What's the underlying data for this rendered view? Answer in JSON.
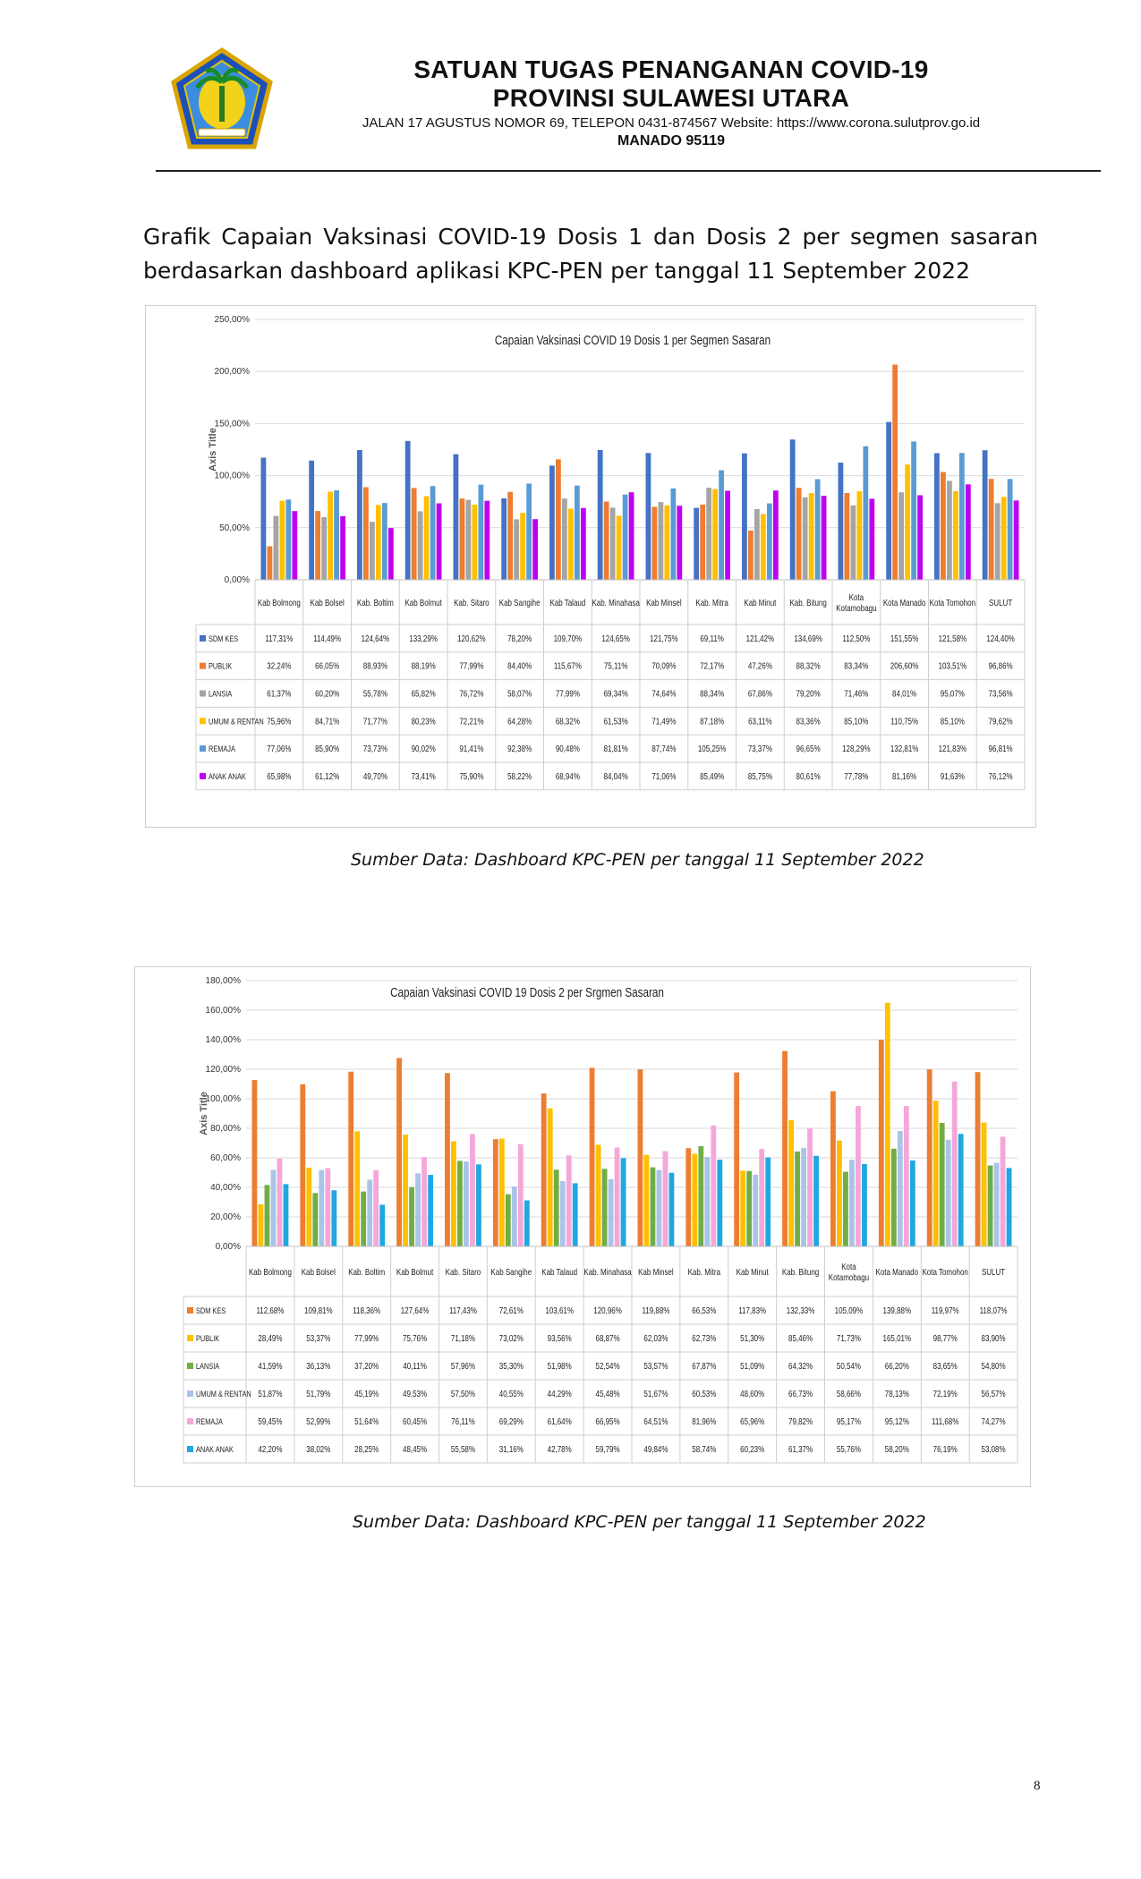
{
  "header": {
    "line1": "SATUAN TUGAS PENANGANAN COVID-19",
    "line2": "PROVINSI SULAWESI UTARA",
    "address": "JALAN  17  AGUSTUS  NOMOR  69,  TELEPON  0431-874567  Website:  https://www.corona.sulutprov.go.id",
    "city": "MANADO  95119"
  },
  "intro": "Grafik Capaian Vaksinasi COVID-19 Dosis 1 dan Dosis 2 per segmen sasaran berdasarkan dashboard aplikasi KPC-PEN per tanggal 11 September 2022",
  "source1": "Sumber Data: Dashboard KPC-PEN per tanggal 11 September 2022",
  "source2": "Sumber Data: Dashboard KPC-PEN per tanggal 11 September 2022",
  "page_number": "8",
  "chart_data": [
    {
      "type": "bar",
      "title": "Capaian Vaksinasi COVID 19 Dosis 1 per Segmen Sasaran",
      "ylabel": "Axis Title",
      "ylim": [
        0,
        250
      ],
      "yticks": [
        "0,00%",
        "50,00%",
        "100,00%",
        "150,00%",
        "200,00%",
        "250,00%"
      ],
      "grid": true,
      "legend": "table-below",
      "categories": [
        "Kab Bolmong",
        "Kab Bolsel",
        "Kab. Boltim",
        "Kab Bolmut",
        "Kab. Sitaro",
        "Kab Sangihe",
        "Kab Talaud",
        "Kab. Minahasa",
        "Kab Minsel",
        "Kab. Mitra",
        "Kab Minut",
        "Kab. Bitung",
        "Kota Kotamobagu",
        "Kota Manado",
        "Kota Tomohon",
        "SULUT"
      ],
      "series": [
        {
          "name": "SDM KES",
          "color": "#4472c4",
          "values": [
            117.31,
            114.49,
            124.64,
            133.29,
            120.62,
            78.2,
            109.7,
            124.65,
            121.75,
            69.11,
            121.42,
            134.69,
            112.5,
            151.55,
            121.58,
            124.4
          ],
          "labels": [
            "117,31%",
            "114,49%",
            "124,64%",
            "133,29%",
            "120,62%",
            "78,20%",
            "109,70%",
            "124,65%",
            "121,75%",
            "69,11%",
            "121,42%",
            "134,69%",
            "112,50%",
            "151,55%",
            "121,58%",
            "124,40%"
          ]
        },
        {
          "name": "PUBLIK",
          "color": "#ed7d31",
          "values": [
            32.24,
            66.05,
            88.93,
            88.19,
            77.99,
            84.4,
            115.67,
            75.11,
            70.09,
            72.17,
            47.26,
            88.32,
            83.34,
            206.6,
            103.51,
            96.86
          ],
          "labels": [
            "32,24%",
            "66,05%",
            "88,93%",
            "88,19%",
            "77,99%",
            "84,40%",
            "115,67%",
            "75,11%",
            "70,09%",
            "72,17%",
            "47,26%",
            "88,32%",
            "83,34%",
            "206,60%",
            "103,51%",
            "96,86%"
          ]
        },
        {
          "name": "LANSIA",
          "color": "#a5a5a5",
          "values": [
            61.37,
            60.2,
            55.78,
            65.82,
            76.72,
            58.07,
            77.99,
            69.34,
            74.64,
            88.34,
            67.86,
            79.2,
            71.46,
            84.01,
            95.07,
            73.56
          ],
          "labels": [
            "61,37%",
            "60,20%",
            "55,78%",
            "65,82%",
            "76,72%",
            "58,07%",
            "77,99%",
            "69,34%",
            "74,64%",
            "88,34%",
            "67,86%",
            "79,20%",
            "71,46%",
            "84,01%",
            "95,07%",
            "73,56%"
          ]
        },
        {
          "name": "UMUM & RENTAN",
          "color": "#ffc000",
          "values": [
            75.96,
            84.71,
            71.77,
            80.23,
            72.21,
            64.28,
            68.32,
            61.53,
            71.49,
            87.18,
            63.11,
            83.36,
            85.1,
            110.75,
            85.1,
            79.62
          ],
          "labels": [
            "75,96%",
            "84,71%",
            "71,77%",
            "80,23%",
            "72,21%",
            "64,28%",
            "68,32%",
            "61,53%",
            "71,49%",
            "87,18%",
            "63,11%",
            "83,36%",
            "85,10%",
            "110,75%",
            "85,10%",
            "79,62%"
          ]
        },
        {
          "name": "REMAJA",
          "color": "#5b9bd5",
          "values": [
            77.06,
            85.9,
            73.73,
            90.02,
            91.41,
            92.38,
            90.48,
            81.81,
            87.74,
            105.25,
            73.37,
            96.65,
            128.29,
            132.81,
            121.83,
            96.81
          ],
          "labels": [
            "77,06%",
            "85,90%",
            "73,73%",
            "90,02%",
            "91,41%",
            "92,38%",
            "90,48%",
            "81,81%",
            "87,74%",
            "105,25%",
            "73,37%",
            "96,65%",
            "128,29%",
            "132,81%",
            "121,83%",
            "96,81%"
          ]
        },
        {
          "name": "ANAK ANAK",
          "color": "#c000f0",
          "values": [
            65.98,
            61.12,
            49.7,
            73.41,
            75.9,
            58.22,
            68.94,
            84.04,
            71.06,
            85.49,
            85.75,
            80.61,
            77.78,
            81.16,
            91.63,
            76.12
          ],
          "labels": [
            "65,98%",
            "61,12%",
            "49,70%",
            "73,41%",
            "75,90%",
            "58,22%",
            "68,94%",
            "84,04%",
            "71,06%",
            "85,49%",
            "85,75%",
            "80,61%",
            "77,78%",
            "81,16%",
            "91,63%",
            "76,12%"
          ]
        }
      ]
    },
    {
      "type": "bar",
      "title": "Capaian Vaksinasi COVID 19 Dosis 2 per Srgmen Sasaran",
      "ylabel": "Axis Title",
      "ylim": [
        0,
        180
      ],
      "yticks": [
        "0,00%",
        "20,00%",
        "40,00%",
        "60,00%",
        "80,00%",
        "100,00%",
        "120,00%",
        "140,00%",
        "160,00%",
        "180,00%"
      ],
      "grid": true,
      "legend": "table-below",
      "categories": [
        "Kab Bolmong",
        "Kab Bolsel",
        "Kab. Boltim",
        "Kab Bolmut",
        "Kab. Sitaro",
        "Kab Sangihe",
        "Kab Talaud",
        "Kab. Minahasa",
        "Kab Minsel",
        "Kab. Mitra",
        "Kab Minut",
        "Kab. Bitung",
        "Kota Kotamobagu",
        "Kota Manado",
        "Kota Tomohon",
        "SULUT"
      ],
      "series": [
        {
          "name": "SDM KES",
          "color": "#ed7d31",
          "values": [
            112.68,
            109.81,
            118.36,
            127.64,
            117.43,
            72.61,
            103.61,
            120.96,
            119.88,
            66.53,
            117.83,
            132.33,
            105.09,
            139.88,
            119.97,
            118.07
          ],
          "labels": [
            "112,68%",
            "109,81%",
            "118,36%",
            "127,64%",
            "117,43%",
            "72,61%",
            "103,61%",
            "120,96%",
            "119,88%",
            "66,53%",
            "117,83%",
            "132,33%",
            "105,09%",
            "139,88%",
            "119,97%",
            "118,07%"
          ]
        },
        {
          "name": "PUBLIK",
          "color": "#ffc000",
          "values": [
            28.49,
            53.37,
            77.99,
            75.76,
            71.18,
            73.02,
            93.56,
            68.87,
            62.03,
            62.73,
            51.3,
            85.46,
            71.73,
            165.01,
            98.77,
            83.9
          ],
          "labels": [
            "28,49%",
            "53,37%",
            "77,99%",
            "75,76%",
            "71,18%",
            "73,02%",
            "93,56%",
            "68,87%",
            "62,03%",
            "62,73%",
            "51,30%",
            "85,46%",
            "71,73%",
            "165,01%",
            "98,77%",
            "83,90%"
          ]
        },
        {
          "name": "LANSIA",
          "color": "#70ad47",
          "values": [
            41.59,
            36.13,
            37.2,
            40.11,
            57.96,
            35.3,
            51.98,
            52.54,
            53.57,
            67.87,
            51.09,
            64.32,
            50.54,
            66.2,
            83.65,
            54.8
          ],
          "labels": [
            "41,59%",
            "36,13%",
            "37,20%",
            "40,11%",
            "57,96%",
            "35,30%",
            "51,98%",
            "52,54%",
            "53,57%",
            "67,87%",
            "51,09%",
            "64,32%",
            "50,54%",
            "66,20%",
            "83,65%",
            "54,80%"
          ]
        },
        {
          "name": "UMUM & RENTAN",
          "color": "#a9c4e8",
          "values": [
            51.87,
            51.79,
            45.19,
            49.53,
            57.5,
            40.55,
            44.29,
            45.48,
            51.67,
            60.53,
            48.6,
            66.73,
            58.66,
            78.13,
            72.19,
            56.57
          ],
          "labels": [
            "51,87%",
            "51,79%",
            "45,19%",
            "49,53%",
            "57,50%",
            "40,55%",
            "44,29%",
            "45,48%",
            "51,67%",
            "60,53%",
            "48,60%",
            "66,73%",
            "58,66%",
            "78,13%",
            "72,19%",
            "56,57%"
          ]
        },
        {
          "name": "REMAJA",
          "color": "#f4a7d8",
          "values": [
            59.45,
            52.99,
            51.64,
            60.45,
            76.11,
            69.29,
            61.64,
            66.95,
            64.51,
            81.96,
            65.96,
            79.82,
            95.17,
            95.12,
            111.68,
            74.27
          ],
          "labels": [
            "59,45%",
            "52,99%",
            "51,64%",
            "60,45%",
            "76,11%",
            "69,29%",
            "61,64%",
            "66,95%",
            "64,51%",
            "81,96%",
            "65,96%",
            "79,82%",
            "95,17%",
            "95,12%",
            "111,68%",
            "74,27%"
          ]
        },
        {
          "name": "ANAK ANAK",
          "color": "#1fa8e0",
          "values": [
            42.2,
            38.02,
            28.25,
            48.45,
            55.58,
            31.16,
            42.78,
            59.79,
            49.84,
            58.74,
            60.23,
            61.37,
            55.76,
            58.2,
            76.19,
            53.08
          ],
          "labels": [
            "42,20%",
            "38,02%",
            "28,25%",
            "48,45%",
            "55,58%",
            "31,16%",
            "42,78%",
            "59,79%",
            "49,84%",
            "58,74%",
            "60,23%",
            "61,37%",
            "55,76%",
            "58,20%",
            "76,19%",
            "53,08%"
          ]
        }
      ]
    }
  ]
}
